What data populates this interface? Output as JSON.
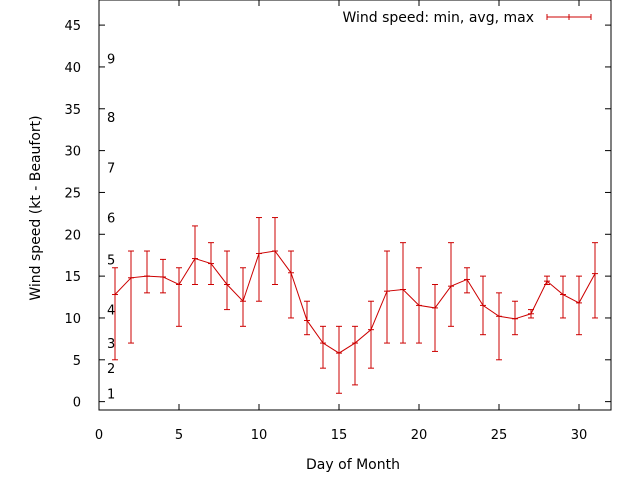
{
  "chart_data": {
    "type": "line",
    "xlabel": "Day of Month",
    "ylabel": "Wind speed (kt - Beaufort)",
    "xlim": [
      0,
      32
    ],
    "ylim": [
      -1,
      48
    ],
    "xticks": [
      0,
      5,
      10,
      15,
      20,
      25,
      30
    ],
    "yticks": [
      0,
      5,
      10,
      15,
      20,
      25,
      30,
      35,
      40,
      45
    ],
    "grid": false,
    "legend_position": "top-right",
    "line_color": "#cc0000",
    "beaufort_labels": [
      {
        "label": "1",
        "value": 1
      },
      {
        "label": "2",
        "value": 4
      },
      {
        "label": "3",
        "value": 7
      },
      {
        "label": "4",
        "value": 11
      },
      {
        "label": "5",
        "value": 17
      },
      {
        "label": "6",
        "value": 22
      },
      {
        "label": "7",
        "value": 28
      },
      {
        "label": "8",
        "value": 34
      },
      {
        "label": "9",
        "value": 41
      }
    ],
    "series": [
      {
        "name": "Wind speed: min, avg, max",
        "x": [
          1,
          2,
          3,
          4,
          5,
          6,
          7,
          8,
          9,
          10,
          11,
          12,
          13,
          14,
          15,
          16,
          17,
          18,
          19,
          20,
          21,
          22,
          23,
          24,
          25,
          26,
          27,
          28,
          29,
          30,
          31
        ],
        "y": [
          12.8,
          14.8,
          15.0,
          14.9,
          14.0,
          17.1,
          16.5,
          14.0,
          12.0,
          17.7,
          18.0,
          15.4,
          9.7,
          7.0,
          5.8,
          7.0,
          8.6,
          13.2,
          13.4,
          11.5,
          11.2,
          13.8,
          14.6,
          11.5,
          10.2,
          9.9,
          10.5,
          14.4,
          12.8,
          11.8,
          15.3
        ],
        "min": [
          5,
          7,
          13,
          13,
          9,
          14,
          14,
          11,
          9,
          12,
          14,
          10,
          8,
          4,
          1,
          2,
          4,
          7,
          7,
          7,
          6,
          9,
          13,
          8,
          5,
          8,
          10,
          14,
          10,
          8,
          10
        ],
        "max": [
          16,
          18,
          18,
          17,
          16,
          21,
          19,
          18,
          16,
          22,
          22,
          18,
          12,
          9,
          9,
          9,
          12,
          18,
          19,
          16,
          14,
          19,
          16,
          15,
          13,
          12,
          11,
          15,
          15,
          15,
          19
        ]
      }
    ]
  }
}
